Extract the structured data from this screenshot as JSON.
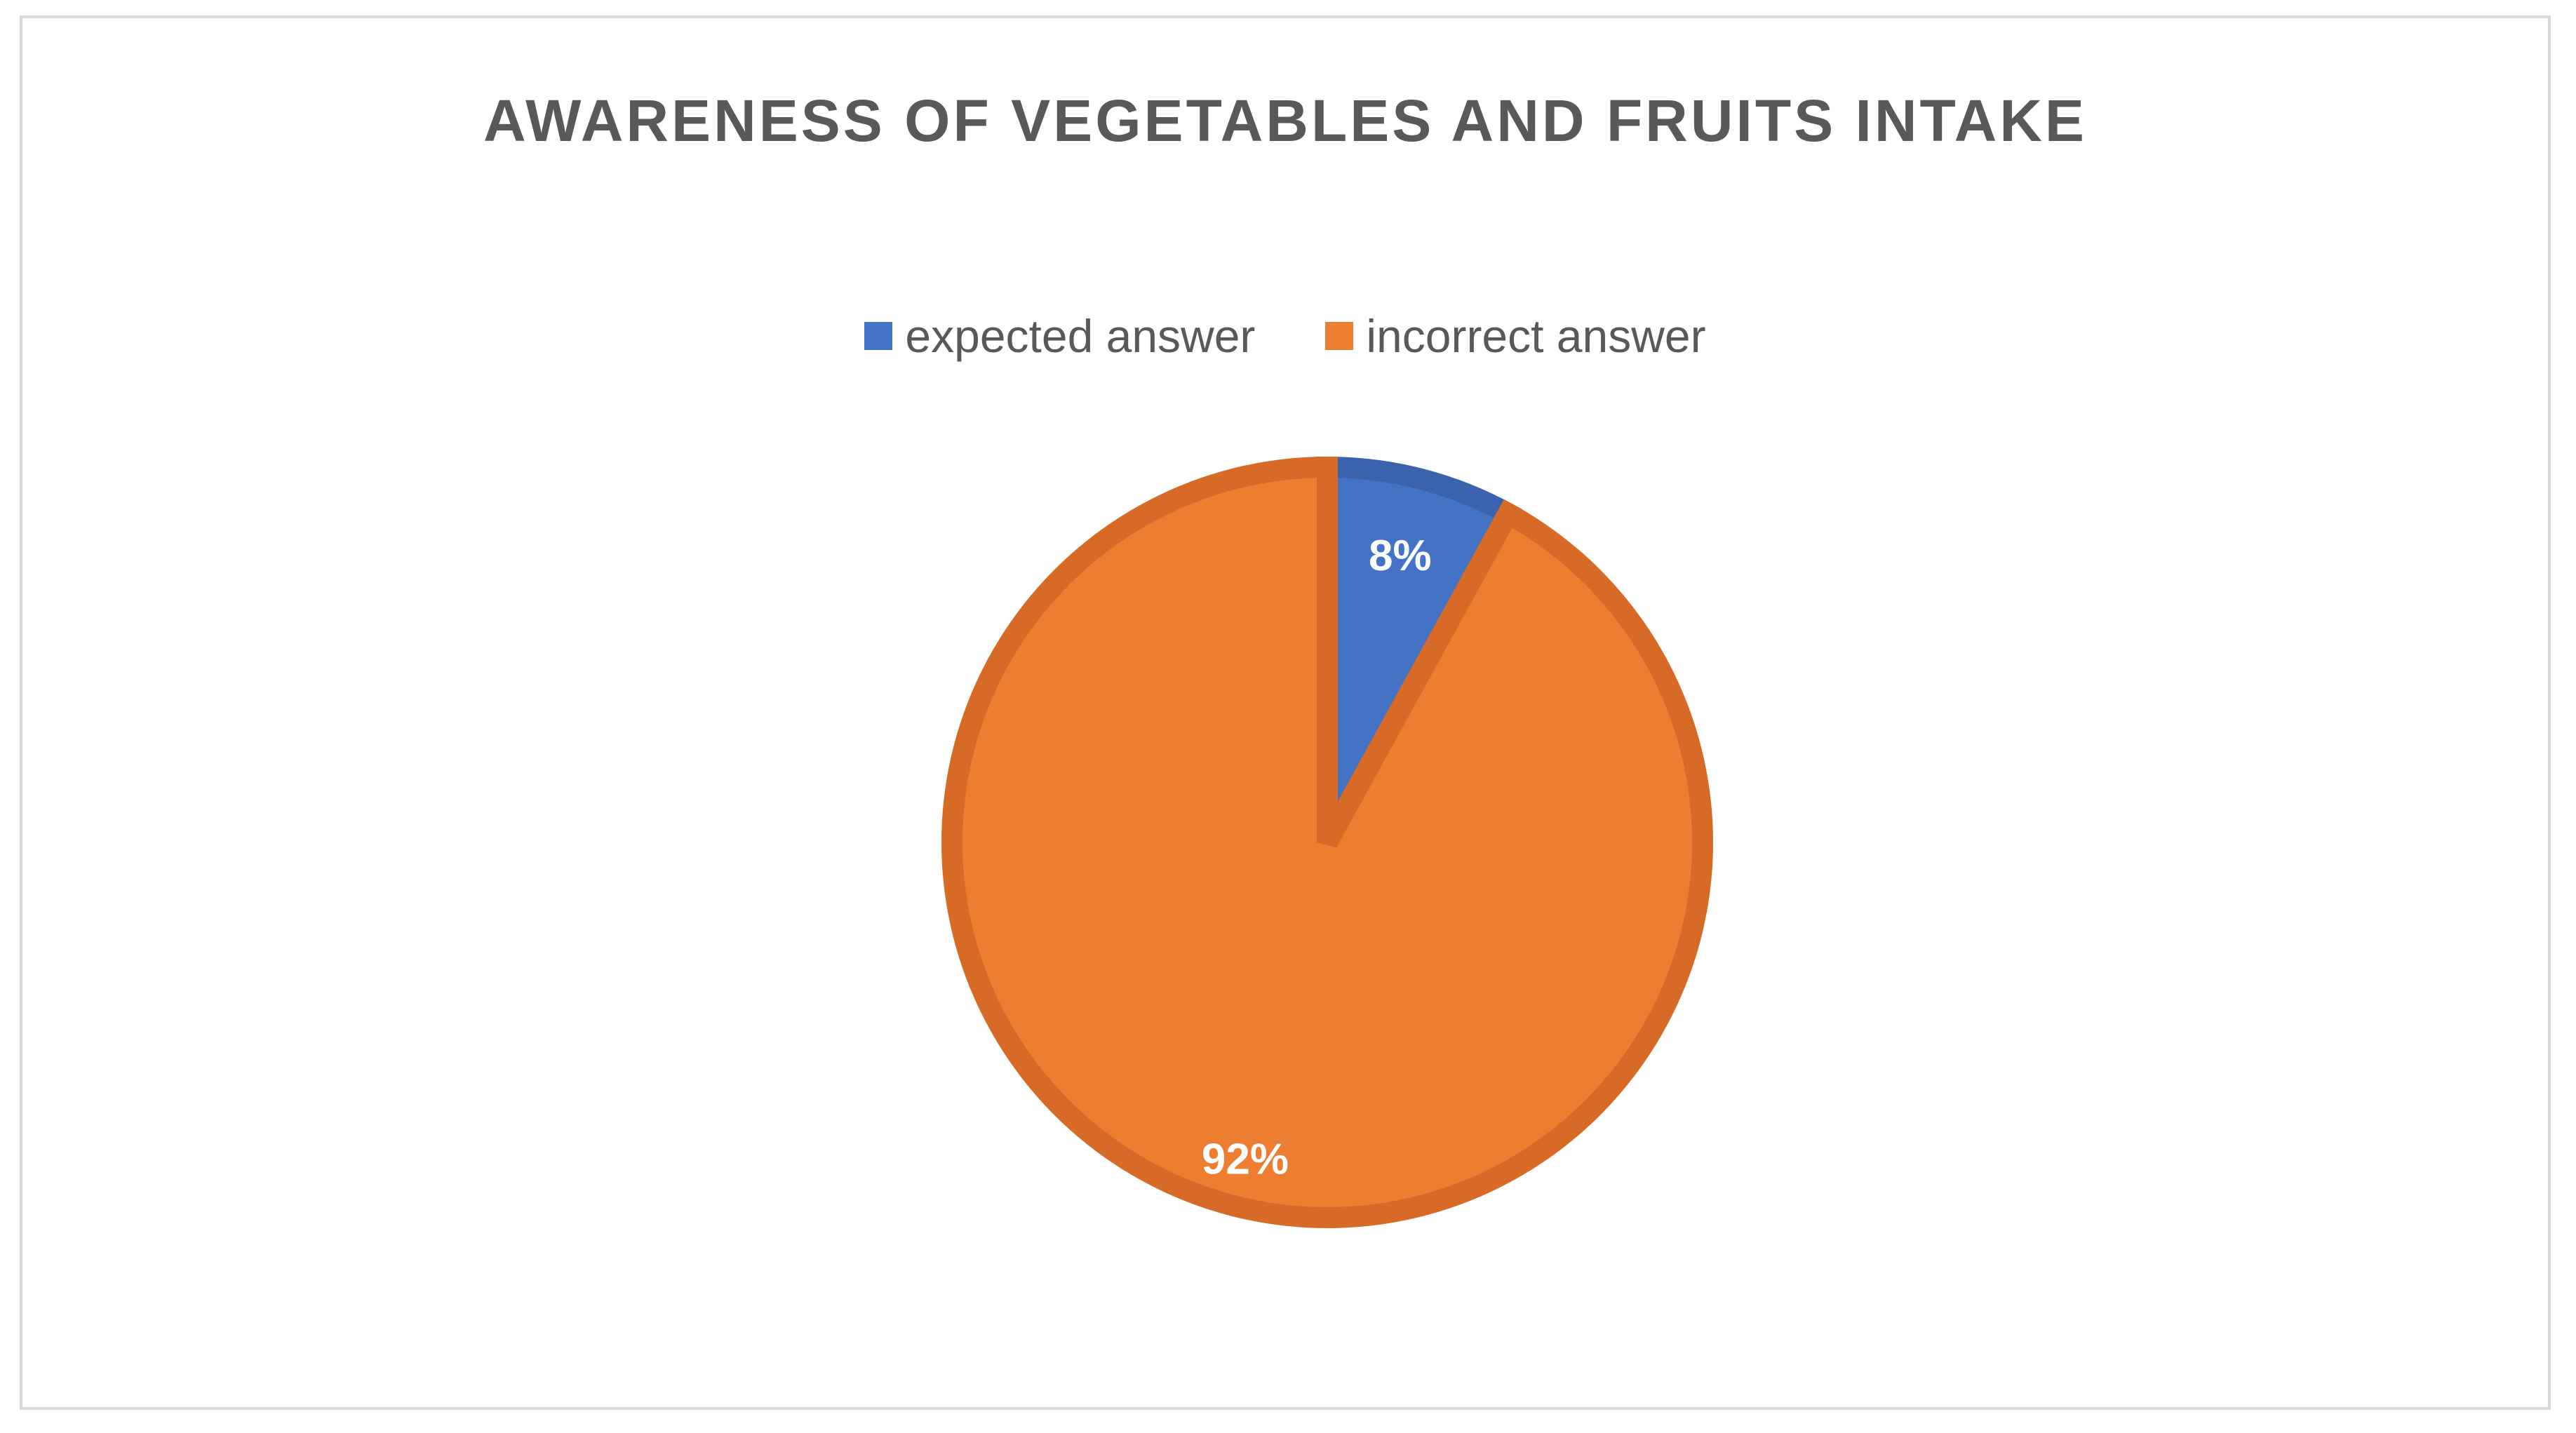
{
  "chart_data": {
    "type": "pie",
    "title": "AWARENESS OF VEGETABLES AND FRUITS INTAKE",
    "legend_position": "top",
    "slices": [
      {
        "label": "expected answer",
        "value": 8,
        "value_label": "8%",
        "color": "#4472C4",
        "border_color": "#3A62AD"
      },
      {
        "label": "incorrect answer",
        "value": 92,
        "value_label": "92%",
        "color": "#ED7D31",
        "border_color": "#D86A27"
      }
    ]
  }
}
